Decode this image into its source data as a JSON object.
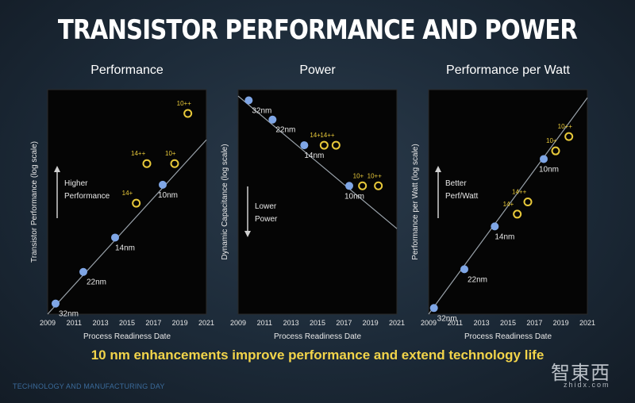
{
  "slide": {
    "title": "TRANSISTOR PERFORMANCE AND POWER",
    "subtitle": "10 nm enhancements improve performance and extend technology life",
    "footer": "TECHNOLOGY AND MANUFACTURING DAY",
    "watermark_cn": "智東西",
    "watermark_en": "zhidx.com"
  },
  "colors": {
    "point_blue": "#7fa6e6",
    "point_yellow": "#e8c93a",
    "trend_line": "#9aa3ab",
    "panel_bg": "#050505",
    "text": "#e8e8e8"
  },
  "chart_data": [
    {
      "type": "scatter",
      "title": "Performance",
      "xlabel": "Process Readiness Date",
      "ylabel": "Transistor Performance (log scale)",
      "xlim": [
        2009,
        2021
      ],
      "xticks": [
        2009,
        2011,
        2013,
        2015,
        2017,
        2019,
        2021
      ],
      "yscale": "log",
      "annotation": [
        "Higher",
        "Performance"
      ],
      "annotation_arrow": "up",
      "trend": [
        [
          2009,
          0.0
        ],
        [
          2021,
          6.6
        ]
      ],
      "series": [
        {
          "name": "",
          "color": "blue",
          "points": [
            {
              "label": "32nm",
              "x": 2009.6,
              "y": 0.4
            },
            {
              "label": "22nm",
              "x": 2011.7,
              "y": 1.6
            },
            {
              "label": "14nm",
              "x": 2014.1,
              "y": 2.9
            },
            {
              "label": "10nm",
              "x": 2017.7,
              "y": 4.9
            }
          ]
        },
        {
          "name": "",
          "color": "yellow",
          "points": [
            {
              "label": "14+",
              "x": 2015.7,
              "y": 4.2
            },
            {
              "label": "14++",
              "x": 2016.5,
              "y": 5.7
            },
            {
              "label": "10+",
              "x": 2018.6,
              "y": 5.7
            },
            {
              "label": "10++",
              "x": 2019.6,
              "y": 7.6
            }
          ]
        }
      ]
    },
    {
      "type": "scatter",
      "title": "Power",
      "xlabel": "Process Readiness Date",
      "ylabel": "Dynamic Capacitance (log scale)",
      "xlim": [
        2009,
        2021
      ],
      "xticks": [
        2009,
        2011,
        2013,
        2015,
        2017,
        2019,
        2021
      ],
      "yscale": "log",
      "annotation": [
        "Lower",
        "Power"
      ],
      "annotation_arrow": "down",
      "trend": [
        [
          2009,
          10.2
        ],
        [
          2021,
          4.0
        ]
      ],
      "series": [
        {
          "name": "",
          "color": "blue",
          "points": [
            {
              "label": "32nm",
              "x": 2009.8,
              "y": 10.0
            },
            {
              "label": "22nm",
              "x": 2011.6,
              "y": 9.1
            },
            {
              "label": "14nm",
              "x": 2014.0,
              "y": 7.9
            },
            {
              "label": "10nm",
              "x": 2017.4,
              "y": 6.0
            }
          ]
        },
        {
          "name": "",
          "color": "yellow",
          "points": [
            {
              "label": "14+",
              "x": 2015.5,
              "y": 7.9
            },
            {
              "label": "14++",
              "x": 2016.4,
              "y": 7.9
            },
            {
              "label": "10+",
              "x": 2018.4,
              "y": 6.0
            },
            {
              "label": "10++",
              "x": 2019.6,
              "y": 6.0
            }
          ]
        }
      ]
    },
    {
      "type": "scatter",
      "title": "Performance per Watt",
      "xlabel": "Process Readiness Date",
      "ylabel": "Performance per Watt (log scale)",
      "xlim": [
        2009,
        2021
      ],
      "xticks": [
        2009,
        2011,
        2013,
        2015,
        2017,
        2019,
        2021
      ],
      "yscale": "log",
      "annotation": [
        "Better",
        "Perf/Watt"
      ],
      "annotation_arrow": "up",
      "trend": [
        [
          2009,
          0.0
        ],
        [
          2021,
          10.6
        ]
      ],
      "series": [
        {
          "name": "",
          "color": "blue",
          "points": [
            {
              "label": "32nm",
              "x": 2009.4,
              "y": 0.3
            },
            {
              "label": "22nm",
              "x": 2011.7,
              "y": 2.2
            },
            {
              "label": "14nm",
              "x": 2014.0,
              "y": 4.3
            },
            {
              "label": "10nm",
              "x": 2017.7,
              "y": 7.6
            }
          ]
        },
        {
          "name": "",
          "color": "yellow",
          "points": [
            {
              "label": "14+",
              "x": 2015.7,
              "y": 4.9
            },
            {
              "label": "14++",
              "x": 2016.5,
              "y": 5.5
            },
            {
              "label": "10+",
              "x": 2018.6,
              "y": 8.0
            },
            {
              "label": "10++",
              "x": 2019.6,
              "y": 8.7
            }
          ]
        }
      ]
    }
  ]
}
